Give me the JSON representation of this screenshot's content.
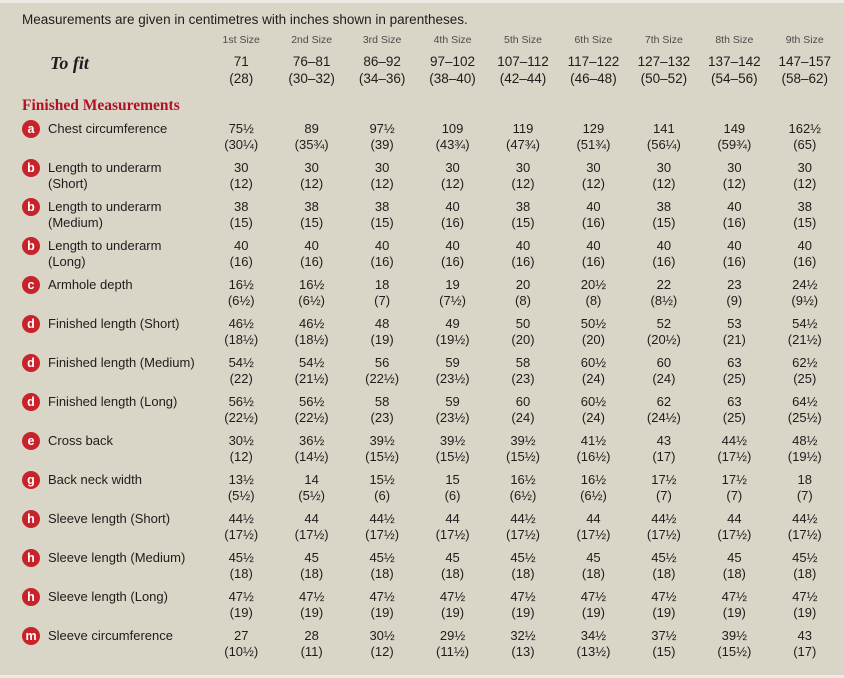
{
  "intro": "Measurements are given in centimetres with inches shown in parentheses.",
  "size_headers": [
    "1st Size",
    "2nd Size",
    "3rd Size",
    "4th Size",
    "5th Size",
    "6th Size",
    "7th Size",
    "8th Size",
    "9th Size"
  ],
  "to_fit": {
    "label": "To fit",
    "cm": [
      "71",
      "76–81",
      "86–92",
      "97–102",
      "107–112",
      "117–122",
      "127–132",
      "137–142",
      "147–157"
    ],
    "in": [
      "(28)",
      "(30–32)",
      "(34–36)",
      "(38–40)",
      "(42–44)",
      "(46–48)",
      "(50–52)",
      "(54–56)",
      "(58–62)"
    ]
  },
  "section_heading": "Finished Measurements",
  "rows": [
    {
      "badge": "a",
      "label": [
        "Chest circumference"
      ],
      "cm": [
        "75½",
        "89",
        "97½",
        "109",
        "119",
        "129",
        "141",
        "149",
        "162½"
      ],
      "in": [
        "(30¼)",
        "(35¾)",
        "(39)",
        "(43¾)",
        "(47¾)",
        "(51¾)",
        "(56¼)",
        "(59¾)",
        "(65)"
      ]
    },
    {
      "badge": "b",
      "label": [
        "Length to underarm",
        "(Short)"
      ],
      "cm": [
        "30",
        "30",
        "30",
        "30",
        "30",
        "30",
        "30",
        "30",
        "30"
      ],
      "in": [
        "(12)",
        "(12)",
        "(12)",
        "(12)",
        "(12)",
        "(12)",
        "(12)",
        "(12)",
        "(12)"
      ]
    },
    {
      "badge": "b",
      "label": [
        "Length to underarm",
        "(Medium)"
      ],
      "cm": [
        "38",
        "38",
        "38",
        "40",
        "38",
        "40",
        "38",
        "40",
        "38"
      ],
      "in": [
        "(15)",
        "(15)",
        "(15)",
        "(16)",
        "(15)",
        "(16)",
        "(15)",
        "(16)",
        "(15)"
      ]
    },
    {
      "badge": "b",
      "label": [
        "Length to underarm",
        "(Long)"
      ],
      "cm": [
        "40",
        "40",
        "40",
        "40",
        "40",
        "40",
        "40",
        "40",
        "40"
      ],
      "in": [
        "(16)",
        "(16)",
        "(16)",
        "(16)",
        "(16)",
        "(16)",
        "(16)",
        "(16)",
        "(16)"
      ]
    },
    {
      "badge": "c",
      "label": [
        "Armhole depth"
      ],
      "cm": [
        "16½",
        "16½",
        "18",
        "19",
        "20",
        "20½",
        "22",
        "23",
        "24½"
      ],
      "in": [
        "(6½)",
        "(6½)",
        "(7)",
        "(7½)",
        "(8)",
        "(8)",
        "(8½)",
        "(9)",
        "(9½)"
      ]
    },
    {
      "badge": "d",
      "label": [
        "Finished length  (Short)"
      ],
      "cm": [
        "46½",
        "46½",
        "48",
        "49",
        "50",
        "50½",
        "52",
        "53",
        "54½"
      ],
      "in": [
        "(18½)",
        "(18½)",
        "(19)",
        "(19½)",
        "(20)",
        "(20)",
        "(20½)",
        "(21)",
        "(21½)"
      ]
    },
    {
      "badge": "d",
      "label": [
        "Finished length (Medium)"
      ],
      "cm": [
        "54½",
        "54½",
        "56",
        "59",
        "58",
        "60½",
        "60",
        "63",
        "62½"
      ],
      "in": [
        "(22)",
        "(21½)",
        "(22½)",
        "(23½)",
        "(23)",
        "(24)",
        "(24)",
        "(25)",
        "(25)"
      ]
    },
    {
      "badge": "d",
      "label": [
        "Finished length  (Long)"
      ],
      "cm": [
        "56½",
        "56½",
        "58",
        "59",
        "60",
        "60½",
        "62",
        "63",
        "64½"
      ],
      "in": [
        "(22½)",
        "(22½)",
        "(23)",
        "(23½)",
        "(24)",
        "(24)",
        "(24½)",
        "(25)",
        "(25½)"
      ]
    },
    {
      "badge": "e",
      "label": [
        "Cross back"
      ],
      "cm": [
        "30½",
        "36½",
        "39½",
        "39½",
        "39½",
        "41½",
        "43",
        "44½",
        "48½"
      ],
      "in": [
        "(12)",
        "(14½)",
        "(15½)",
        "(15½)",
        "(15½)",
        "(16½)",
        "(17)",
        "(17½)",
        "(19½)"
      ]
    },
    {
      "badge": "g",
      "label": [
        "Back neck width"
      ],
      "cm": [
        "13½",
        "14",
        "15½",
        "15",
        "16½",
        "16½",
        "17½",
        "17½",
        "18"
      ],
      "in": [
        "(5½)",
        "(5½)",
        "(6)",
        "(6)",
        "(6½)",
        "(6½)",
        "(7)",
        "(7)",
        "(7)"
      ]
    },
    {
      "badge": "h",
      "label": [
        "Sleeve length  (Short)"
      ],
      "cm": [
        "44½",
        "44",
        "44½",
        "44",
        "44½",
        "44",
        "44½",
        "44",
        "44½"
      ],
      "in": [
        "(17½)",
        "(17½)",
        "(17½)",
        "(17½)",
        "(17½)",
        "(17½)",
        "(17½)",
        "(17½)",
        "(17½)"
      ]
    },
    {
      "badge": "h",
      "label": [
        "Sleeve length (Medium)"
      ],
      "cm": [
        "45½",
        "45",
        "45½",
        "45",
        "45½",
        "45",
        "45½",
        "45",
        "45½"
      ],
      "in": [
        "(18)",
        "(18)",
        "(18)",
        "(18)",
        "(18)",
        "(18)",
        "(18)",
        "(18)",
        "(18)"
      ]
    },
    {
      "badge": "h",
      "label": [
        "Sleeve length (Long)"
      ],
      "cm": [
        "47½",
        "47½",
        "47½",
        "47½",
        "47½",
        "47½",
        "47½",
        "47½",
        "47½"
      ],
      "in": [
        "(19)",
        "(19)",
        "(19)",
        "(19)",
        "(19)",
        "(19)",
        "(19)",
        "(19)",
        "(19)"
      ]
    },
    {
      "badge": "m",
      "label": [
        "Sleeve circumference"
      ],
      "cm": [
        "27",
        "28",
        "30½",
        "29½",
        "32½",
        "34½",
        "37½",
        "39½",
        "43"
      ],
      "in": [
        "(10½)",
        "(11)",
        "(12)",
        "(11½)",
        "(13)",
        "(13½)",
        "(15)",
        "(15½)",
        "(17)"
      ]
    }
  ],
  "colors": {
    "background": "#d9d6c8",
    "badge_red": "#c8232b",
    "heading_red": "#b11226",
    "text": "#1d1d1b"
  }
}
